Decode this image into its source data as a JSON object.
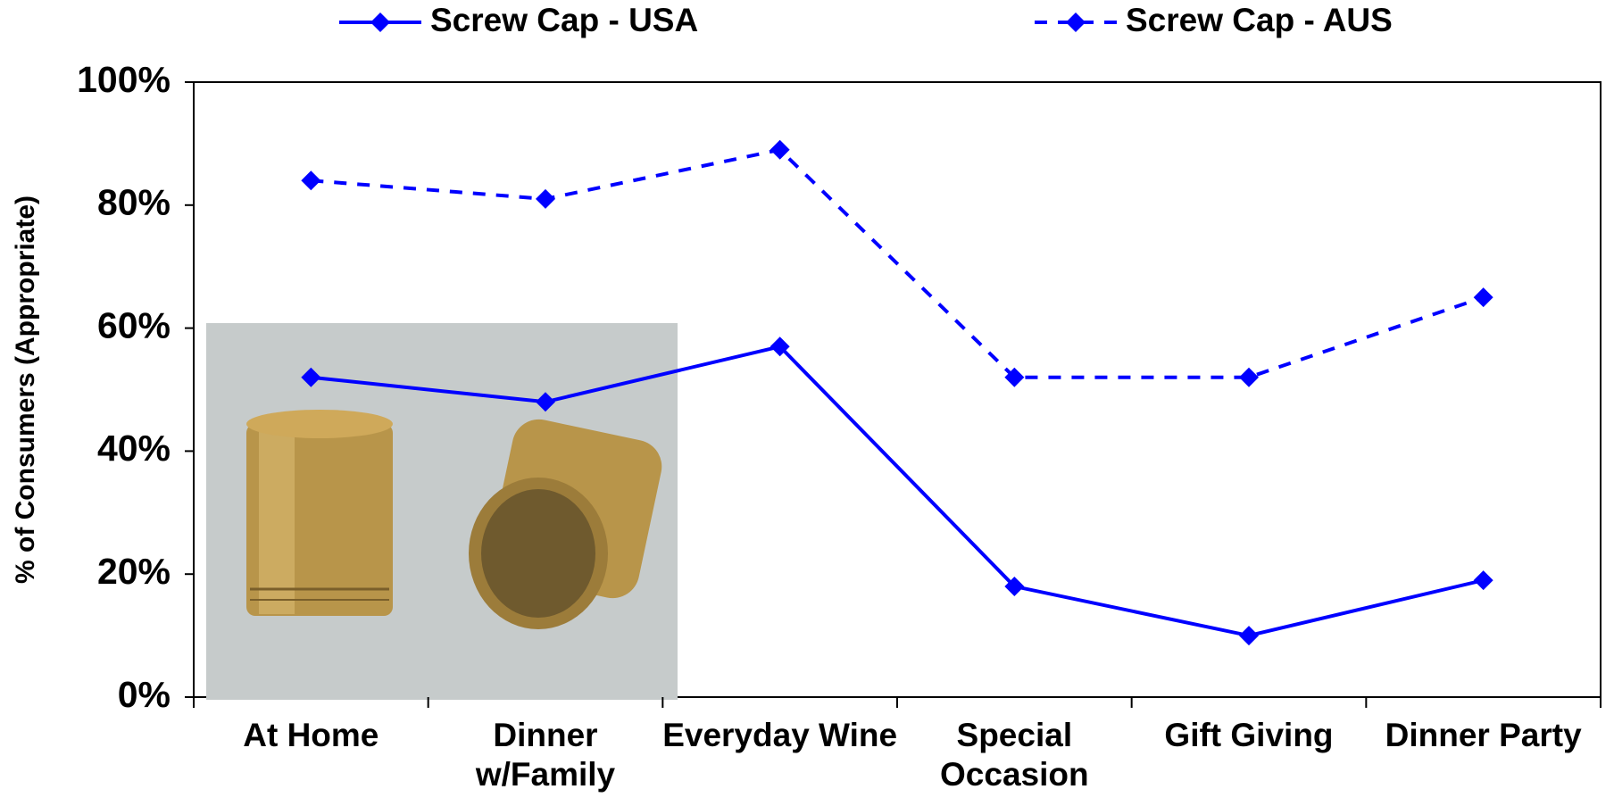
{
  "chart_data": {
    "type": "line",
    "y_axis_label": "% of Consumers (Appropriate)",
    "categories": [
      "At Home",
      "Dinner w/Family",
      "Everyday Wine",
      "Special Occasion",
      "Gift Giving",
      "Dinner Party"
    ],
    "series": [
      {
        "name": "Screw Cap - USA",
        "color": "#0000ff",
        "dashed": false,
        "values": [
          52,
          48,
          57,
          18,
          10,
          19
        ]
      },
      {
        "name": "Screw Cap - AUS",
        "color": "#0000ff",
        "dashed": true,
        "values": [
          84,
          81,
          89,
          52,
          52,
          65
        ]
      }
    ],
    "ylim": [
      0,
      100
    ],
    "yticks": [
      {
        "value": 0,
        "label": "0%"
      },
      {
        "value": 20,
        "label": "20%"
      },
      {
        "value": 40,
        "label": "40%"
      },
      {
        "value": 60,
        "label": "60%"
      },
      {
        "value": 80,
        "label": "80%"
      },
      {
        "value": 100,
        "label": "100%"
      }
    ],
    "legend": "top"
  }
}
